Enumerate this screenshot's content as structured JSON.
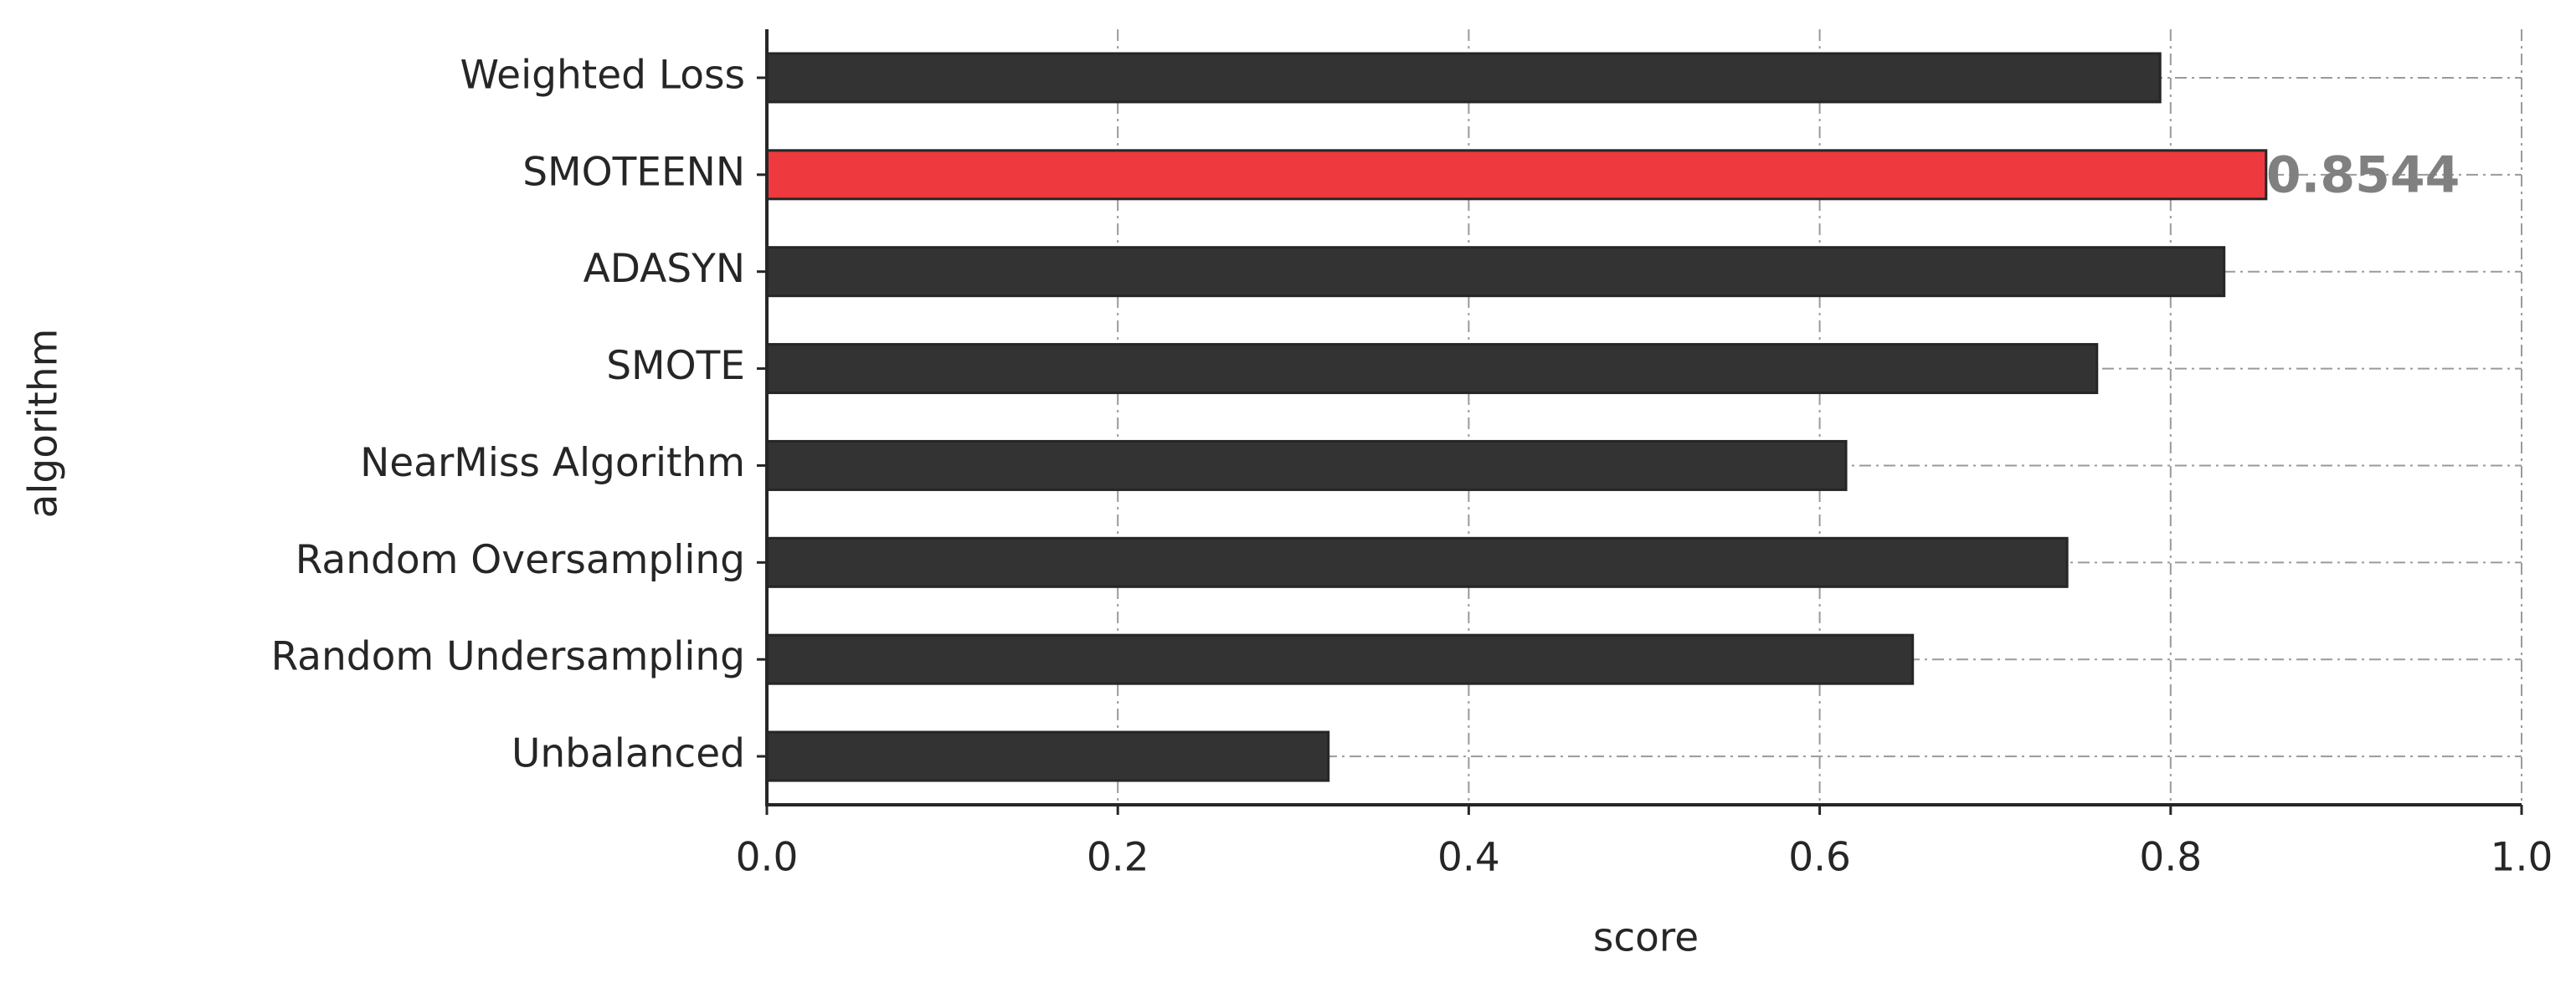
{
  "chart_data": {
    "type": "barh",
    "x_label": "score",
    "y_label": "algorithm",
    "categories": [
      "Weighted Loss",
      "SMOTEENN",
      "ADASYN",
      "SMOTE",
      "NearMiss Algorithm",
      "Random Oversampling",
      "Random Undersampling",
      "Unbalanced"
    ],
    "values": [
      0.794,
      0.8544,
      0.8305,
      0.758,
      0.615,
      0.741,
      0.653,
      0.32
    ],
    "colors": [
      "#333333",
      "#ee3a3f",
      "#333333",
      "#333333",
      "#333333",
      "#333333",
      "#333333",
      "#333333"
    ],
    "labeled_bar": 1,
    "xlim": [
      0,
      1
    ],
    "xticks": [
      {
        "value": 0,
        "label": "0.0"
      },
      0.2,
      0.4,
      0.6,
      0.8,
      {
        "value": 1,
        "label": "1.0"
      }
    ],
    "grid": true
  }
}
